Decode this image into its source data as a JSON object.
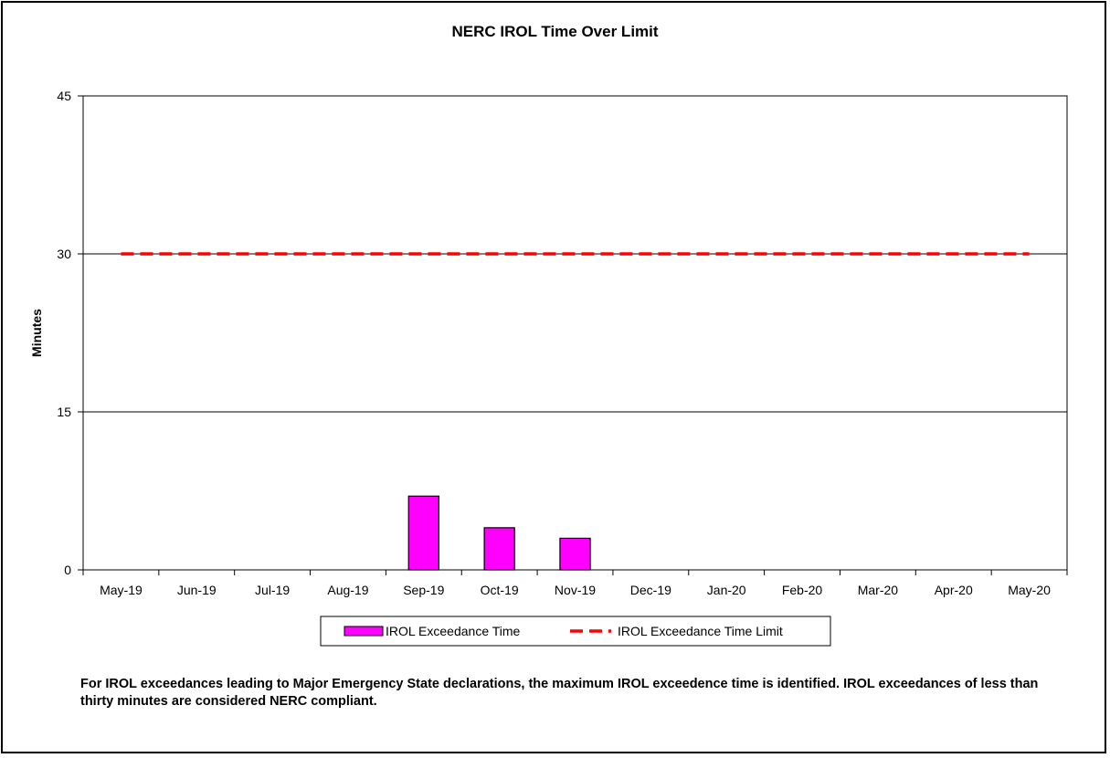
{
  "chart_data": {
    "type": "bar",
    "title": "NERC IROL Time Over Limit",
    "xlabel": "",
    "ylabel": "Minutes",
    "ylim": [
      0,
      45
    ],
    "yticks": [
      0,
      15,
      30,
      45
    ],
    "grid": true,
    "legend_position": "bottom",
    "categories": [
      "May-19",
      "Jun-19",
      "Jul-19",
      "Aug-19",
      "Sep-19",
      "Oct-19",
      "Nov-19",
      "Dec-19",
      "Jan-20",
      "Feb-20",
      "Mar-20",
      "Apr-20",
      "May-20"
    ],
    "series": [
      {
        "name": "IROL Exceedance Time",
        "type": "bar",
        "color": "#ff00ff",
        "values": [
          0,
          0,
          0,
          0,
          7,
          4,
          3,
          0,
          0,
          0,
          0,
          0,
          0
        ]
      },
      {
        "name": "IROL Exceedance Time Limit",
        "type": "line",
        "style": "dashed",
        "color": "#ff0000",
        "values": [
          30,
          30,
          30,
          30,
          30,
          30,
          30,
          30,
          30,
          30,
          30,
          30,
          30
        ]
      }
    ]
  },
  "note": "For IROL exceedances leading to Major Emergency State declarations, the maximum IROL exceedence time is identified.  IROL exceedances of less than thirty minutes are considered NERC compliant."
}
